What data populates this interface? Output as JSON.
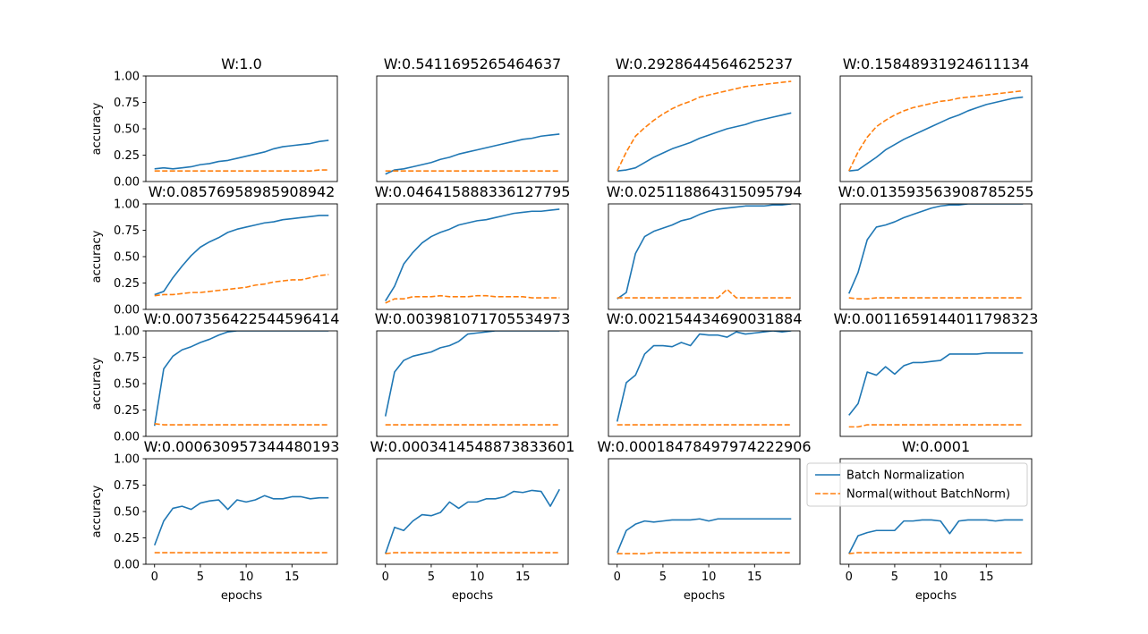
{
  "chart_data": {
    "type": "line",
    "panels": [
      {
        "title": "W:1.0",
        "series": [
          {
            "name": "Batch Normalization",
            "values": [
              0.12,
              0.13,
              0.12,
              0.13,
              0.14,
              0.16,
              0.17,
              0.19,
              0.2,
              0.22,
              0.24,
              0.26,
              0.28,
              0.31,
              0.33,
              0.34,
              0.35,
              0.36,
              0.38,
              0.39
            ]
          },
          {
            "name": "Normal(without BatchNorm)",
            "values": [
              0.1,
              0.1,
              0.1,
              0.1,
              0.1,
              0.1,
              0.1,
              0.1,
              0.1,
              0.1,
              0.1,
              0.1,
              0.1,
              0.1,
              0.1,
              0.1,
              0.1,
              0.1,
              0.11,
              0.11
            ]
          }
        ]
      },
      {
        "title": "W:0.5411695265464637",
        "series": [
          {
            "name": "Batch Normalization",
            "values": [
              0.07,
              0.11,
              0.12,
              0.14,
              0.16,
              0.18,
              0.21,
              0.23,
              0.26,
              0.28,
              0.3,
              0.32,
              0.34,
              0.36,
              0.38,
              0.4,
              0.41,
              0.43,
              0.44,
              0.45
            ]
          },
          {
            "name": "Normal(without BatchNorm)",
            "values": [
              0.1,
              0.1,
              0.1,
              0.1,
              0.1,
              0.1,
              0.1,
              0.1,
              0.1,
              0.1,
              0.1,
              0.1,
              0.1,
              0.1,
              0.1,
              0.1,
              0.1,
              0.1,
              0.1,
              0.1
            ]
          }
        ]
      },
      {
        "title": "W:0.2928644564625237",
        "series": [
          {
            "name": "Batch Normalization",
            "values": [
              0.1,
              0.11,
              0.13,
              0.18,
              0.23,
              0.27,
              0.31,
              0.34,
              0.37,
              0.41,
              0.44,
              0.47,
              0.5,
              0.52,
              0.54,
              0.57,
              0.59,
              0.61,
              0.63,
              0.65
            ]
          },
          {
            "name": "Normal(without BatchNorm)",
            "values": [
              0.1,
              0.28,
              0.43,
              0.51,
              0.58,
              0.64,
              0.69,
              0.73,
              0.76,
              0.8,
              0.82,
              0.84,
              0.86,
              0.88,
              0.9,
              0.91,
              0.92,
              0.93,
              0.94,
              0.95
            ]
          }
        ]
      },
      {
        "title": "W:0.15848931924611134",
        "series": [
          {
            "name": "Batch Normalization",
            "values": [
              0.1,
              0.11,
              0.17,
              0.23,
              0.3,
              0.35,
              0.4,
              0.44,
              0.48,
              0.52,
              0.56,
              0.6,
              0.63,
              0.67,
              0.7,
              0.73,
              0.75,
              0.77,
              0.79,
              0.8
            ]
          },
          {
            "name": "Normal(without BatchNorm)",
            "values": [
              0.1,
              0.28,
              0.42,
              0.52,
              0.58,
              0.63,
              0.67,
              0.7,
              0.72,
              0.74,
              0.76,
              0.77,
              0.79,
              0.8,
              0.81,
              0.82,
              0.83,
              0.84,
              0.85,
              0.86
            ]
          }
        ]
      },
      {
        "title": "W:0.08576958985908942",
        "series": [
          {
            "name": "Batch Normalization",
            "values": [
              0.14,
              0.17,
              0.3,
              0.41,
              0.51,
              0.59,
              0.64,
              0.68,
              0.73,
              0.76,
              0.78,
              0.8,
              0.82,
              0.83,
              0.85,
              0.86,
              0.87,
              0.88,
              0.89,
              0.89
            ]
          },
          {
            "name": "Normal(without BatchNorm)",
            "values": [
              0.13,
              0.14,
              0.14,
              0.15,
              0.16,
              0.16,
              0.17,
              0.18,
              0.19,
              0.2,
              0.21,
              0.23,
              0.24,
              0.26,
              0.27,
              0.28,
              0.28,
              0.3,
              0.32,
              0.33
            ]
          }
        ]
      },
      {
        "title": "W:0.046415888336127795",
        "series": [
          {
            "name": "Batch Normalization",
            "values": [
              0.08,
              0.22,
              0.43,
              0.54,
              0.63,
              0.69,
              0.73,
              0.76,
              0.8,
              0.82,
              0.84,
              0.85,
              0.87,
              0.89,
              0.91,
              0.92,
              0.93,
              0.93,
              0.94,
              0.95
            ]
          },
          {
            "name": "Normal(without BatchNorm)",
            "values": [
              0.06,
              0.1,
              0.1,
              0.12,
              0.12,
              0.12,
              0.13,
              0.12,
              0.12,
              0.12,
              0.13,
              0.13,
              0.12,
              0.12,
              0.12,
              0.12,
              0.11,
              0.11,
              0.11,
              0.11
            ]
          }
        ]
      },
      {
        "title": "W:0.025118864315095794",
        "series": [
          {
            "name": "Batch Normalization",
            "values": [
              0.1,
              0.16,
              0.53,
              0.69,
              0.74,
              0.77,
              0.8,
              0.84,
              0.86,
              0.9,
              0.93,
              0.95,
              0.96,
              0.97,
              0.98,
              0.98,
              0.98,
              0.99,
              0.99,
              1.0
            ]
          },
          {
            "name": "Normal(without BatchNorm)",
            "values": [
              0.11,
              0.11,
              0.11,
              0.11,
              0.11,
              0.11,
              0.11,
              0.11,
              0.11,
              0.11,
              0.11,
              0.11,
              0.19,
              0.11,
              0.11,
              0.11,
              0.11,
              0.11,
              0.11,
              0.11
            ]
          }
        ]
      },
      {
        "title": "W:0.013593563908785255",
        "series": [
          {
            "name": "Batch Normalization",
            "values": [
              0.15,
              0.35,
              0.66,
              0.78,
              0.8,
              0.83,
              0.87,
              0.9,
              0.93,
              0.96,
              0.98,
              0.99,
              0.99,
              1.0,
              1.0,
              1.0,
              1.0,
              1.0,
              1.0,
              1.0
            ]
          },
          {
            "name": "Normal(without BatchNorm)",
            "values": [
              0.11,
              0.1,
              0.1,
              0.11,
              0.11,
              0.11,
              0.11,
              0.11,
              0.11,
              0.11,
              0.11,
              0.11,
              0.11,
              0.11,
              0.11,
              0.11,
              0.11,
              0.11,
              0.11,
              0.11
            ]
          }
        ]
      },
      {
        "title": "W:0.007356422544596414",
        "series": [
          {
            "name": "Batch Normalization",
            "values": [
              0.1,
              0.64,
              0.76,
              0.82,
              0.85,
              0.89,
              0.92,
              0.96,
              0.99,
              1.0,
              1.0,
              1.0,
              1.0,
              1.0,
              1.0,
              1.0,
              1.0,
              1.0,
              1.0,
              1.0
            ]
          },
          {
            "name": "Normal(without BatchNorm)",
            "values": [
              0.12,
              0.11,
              0.11,
              0.11,
              0.11,
              0.11,
              0.11,
              0.11,
              0.11,
              0.11,
              0.11,
              0.11,
              0.11,
              0.11,
              0.11,
              0.11,
              0.11,
              0.11,
              0.11,
              0.11
            ]
          }
        ]
      },
      {
        "title": "W:0.003981071705534973",
        "series": [
          {
            "name": "Batch Normalization",
            "values": [
              0.19,
              0.61,
              0.72,
              0.76,
              0.78,
              0.8,
              0.84,
              0.86,
              0.9,
              0.97,
              0.98,
              0.99,
              1.0,
              1.0,
              1.0,
              1.0,
              1.0,
              1.0,
              1.0,
              1.0
            ]
          },
          {
            "name": "Normal(without BatchNorm)",
            "values": [
              0.11,
              0.11,
              0.11,
              0.11,
              0.11,
              0.11,
              0.11,
              0.11,
              0.11,
              0.11,
              0.11,
              0.11,
              0.11,
              0.11,
              0.11,
              0.11,
              0.11,
              0.11,
              0.11,
              0.11
            ]
          }
        ]
      },
      {
        "title": "W:0.002154434690031884",
        "series": [
          {
            "name": "Batch Normalization",
            "values": [
              0.14,
              0.51,
              0.58,
              0.78,
              0.86,
              0.86,
              0.85,
              0.89,
              0.86,
              0.97,
              0.96,
              0.96,
              0.94,
              0.99,
              0.97,
              0.98,
              0.99,
              1.0,
              0.99,
              1.0
            ]
          },
          {
            "name": "Normal(without BatchNorm)",
            "values": [
              0.11,
              0.11,
              0.11,
              0.11,
              0.11,
              0.11,
              0.11,
              0.11,
              0.11,
              0.11,
              0.11,
              0.11,
              0.11,
              0.11,
              0.11,
              0.11,
              0.11,
              0.11,
              0.11,
              0.11
            ]
          }
        ]
      },
      {
        "title": "W:0.0011659144011798323",
        "series": [
          {
            "name": "Batch Normalization",
            "values": [
              0.2,
              0.31,
              0.61,
              0.58,
              0.66,
              0.59,
              0.67,
              0.7,
              0.7,
              0.71,
              0.72,
              0.78,
              0.78,
              0.78,
              0.78,
              0.79,
              0.79,
              0.79,
              0.79,
              0.79
            ]
          },
          {
            "name": "Normal(without BatchNorm)",
            "values": [
              0.09,
              0.09,
              0.11,
              0.11,
              0.11,
              0.11,
              0.11,
              0.11,
              0.11,
              0.11,
              0.11,
              0.11,
              0.11,
              0.11,
              0.11,
              0.11,
              0.11,
              0.11,
              0.11,
              0.11
            ]
          }
        ]
      },
      {
        "title": "W:0.000630957344480193",
        "series": [
          {
            "name": "Batch Normalization",
            "values": [
              0.18,
              0.41,
              0.53,
              0.55,
              0.52,
              0.58,
              0.6,
              0.61,
              0.52,
              0.61,
              0.59,
              0.61,
              0.65,
              0.62,
              0.62,
              0.64,
              0.64,
              0.62,
              0.63,
              0.63
            ]
          },
          {
            "name": "Normal(without BatchNorm)",
            "values": [
              0.11,
              0.11,
              0.11,
              0.11,
              0.11,
              0.11,
              0.11,
              0.11,
              0.11,
              0.11,
              0.11,
              0.11,
              0.11,
              0.11,
              0.11,
              0.11,
              0.11,
              0.11,
              0.11,
              0.11
            ]
          }
        ]
      },
      {
        "title": "W:0.0003414548873833601",
        "series": [
          {
            "name": "Batch Normalization",
            "values": [
              0.1,
              0.35,
              0.32,
              0.41,
              0.47,
              0.46,
              0.49,
              0.59,
              0.53,
              0.59,
              0.59,
              0.62,
              0.62,
              0.64,
              0.69,
              0.68,
              0.7,
              0.69,
              0.55,
              0.71
            ]
          },
          {
            "name": "Normal(without BatchNorm)",
            "values": [
              0.1,
              0.11,
              0.11,
              0.11,
              0.11,
              0.11,
              0.11,
              0.11,
              0.11,
              0.11,
              0.11,
              0.11,
              0.11,
              0.11,
              0.11,
              0.11,
              0.11,
              0.11,
              0.11,
              0.11
            ]
          }
        ]
      },
      {
        "title": "W:0.00018478497974222906",
        "series": [
          {
            "name": "Batch Normalization",
            "values": [
              0.11,
              0.32,
              0.38,
              0.41,
              0.4,
              0.41,
              0.42,
              0.42,
              0.42,
              0.43,
              0.41,
              0.43,
              0.43,
              0.43,
              0.43,
              0.43,
              0.43,
              0.43,
              0.43,
              0.43
            ]
          },
          {
            "name": "Normal(without BatchNorm)",
            "values": [
              0.1,
              0.1,
              0.1,
              0.1,
              0.11,
              0.11,
              0.11,
              0.11,
              0.11,
              0.11,
              0.11,
              0.11,
              0.11,
              0.11,
              0.11,
              0.11,
              0.11,
              0.11,
              0.11,
              0.11
            ]
          }
        ]
      },
      {
        "title": "W:0.0001",
        "series": [
          {
            "name": "Batch Normalization",
            "values": [
              0.1,
              0.27,
              0.3,
              0.32,
              0.32,
              0.32,
              0.41,
              0.41,
              0.42,
              0.42,
              0.41,
              0.29,
              0.41,
              0.42,
              0.42,
              0.42,
              0.41,
              0.42,
              0.42,
              0.42
            ]
          },
          {
            "name": "Normal(without BatchNorm)",
            "values": [
              0.1,
              0.11,
              0.11,
              0.11,
              0.11,
              0.11,
              0.11,
              0.11,
              0.11,
              0.11,
              0.11,
              0.11,
              0.11,
              0.11,
              0.11,
              0.11,
              0.11,
              0.11,
              0.11,
              0.11
            ]
          }
        ]
      }
    ],
    "x": [
      0,
      1,
      2,
      3,
      4,
      5,
      6,
      7,
      8,
      9,
      10,
      11,
      12,
      13,
      14,
      15,
      16,
      17,
      18,
      19
    ],
    "xlim": [
      -0.95,
      19.95
    ],
    "ylim": [
      0,
      1.0
    ],
    "xlabel": "epochs",
    "ylabel": "accuracy",
    "xticks": [
      "0",
      "5",
      "10",
      "15"
    ],
    "yticks": [
      "0.00",
      "0.25",
      "0.50",
      "0.75",
      "1.00"
    ],
    "series_names": [
      "Batch Normalization",
      "Normal(without BatchNorm)"
    ],
    "colors": [
      "#1f77b4",
      "#ff7f0e"
    ],
    "line_styles": [
      "solid",
      "dashed"
    ],
    "legend_placement": "last panel, upper-left",
    "grid": false
  }
}
